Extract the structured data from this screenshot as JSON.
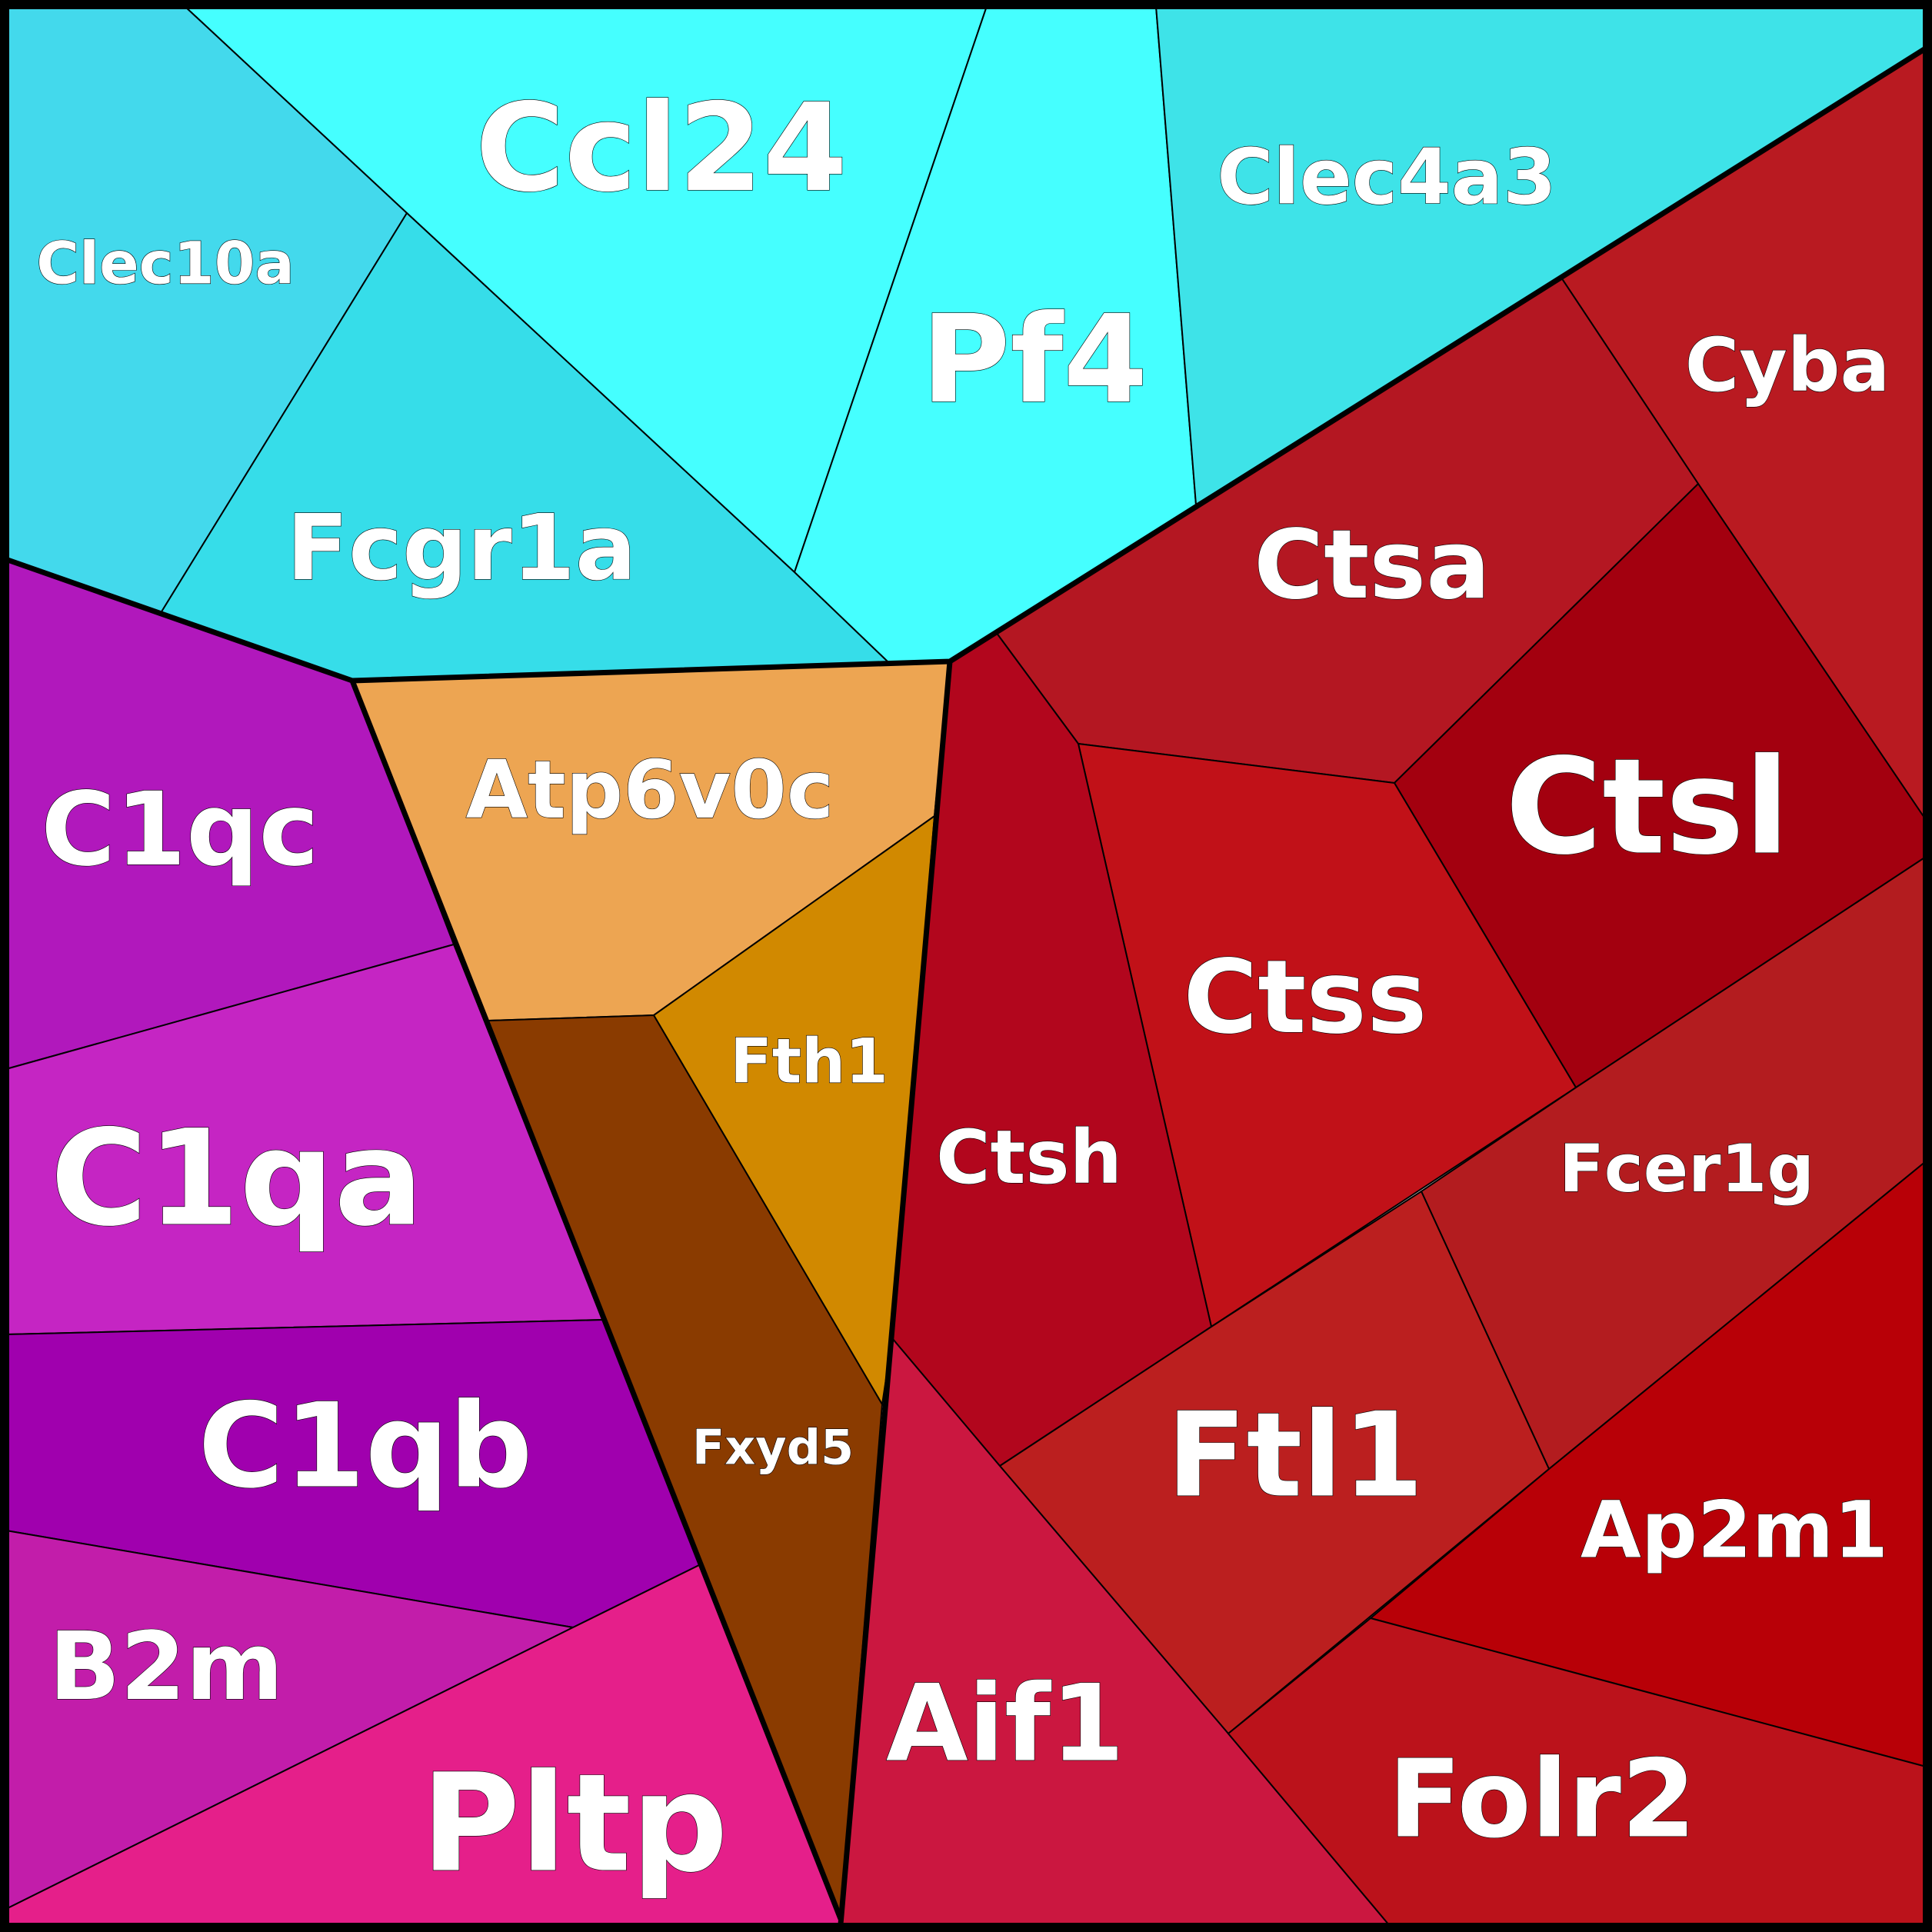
{
  "chart_data": {
    "type": "voronoi-treemap",
    "title": "",
    "groups": [
      {
        "name": "",
        "color": "#3fe0ea",
        "cells": [
          "Ccl24",
          "Pf4",
          "Clec4a3",
          "Clec10a",
          "Fcgr1a"
        ]
      },
      {
        "name": "",
        "color": "#b51a25",
        "cells": [
          "Cyba",
          "Ctsa",
          "Ctsl",
          "Ctss",
          "Ctsh",
          "Fcer1g",
          "Ftl1",
          "Ap2m1",
          "Aif1",
          "Folr2"
        ]
      },
      {
        "name": "",
        "color": "#b318b8",
        "cells": [
          "C1qc",
          "C1qa",
          "C1qb",
          "B2m",
          "Pltp"
        ]
      },
      {
        "name": "",
        "color": "#eda552",
        "cells": [
          "Atp6v0c",
          "Fth1",
          "Fxyd5"
        ]
      }
    ],
    "cells": [
      {
        "label": "Ccl24",
        "color": "#45ffff"
      },
      {
        "label": "Pf4",
        "color": "#45ffff"
      },
      {
        "label": "Clec4a3",
        "color": "#3ee3e8"
      },
      {
        "label": "Clec10a",
        "color": "#43d9ec"
      },
      {
        "label": "Fcgr1a",
        "color": "#36dde9"
      },
      {
        "label": "Cyba",
        "color": "#b91a21"
      },
      {
        "label": "Ctsa",
        "color": "#b41722"
      },
      {
        "label": "Ctsl",
        "color": "#a3000f"
      },
      {
        "label": "Ctss",
        "color": "#c11118"
      },
      {
        "label": "Ctsh",
        "color": "#b2061d"
      },
      {
        "label": "Fcer1g",
        "color": "#b31c1f"
      },
      {
        "label": "Ftl1",
        "color": "#bb1f1f"
      },
      {
        "label": "Ap2m1",
        "color": "#b80007"
      },
      {
        "label": "Aif1",
        "color": "#cb1740"
      },
      {
        "label": "Folr2",
        "color": "#bb121b"
      },
      {
        "label": "C1qc",
        "color": "#b118bc"
      },
      {
        "label": "C1qa",
        "color": "#c525c3"
      },
      {
        "label": "C1qb",
        "color": "#a000ae"
      },
      {
        "label": "B2m",
        "color": "#c21daa"
      },
      {
        "label": "Pltp",
        "color": "#e51f8a"
      },
      {
        "label": "Atp6v0c",
        "color": "#eda552"
      },
      {
        "label": "Fth1",
        "color": "#d18900"
      },
      {
        "label": "Fxyd5",
        "color": "#8a3b00"
      }
    ]
  }
}
